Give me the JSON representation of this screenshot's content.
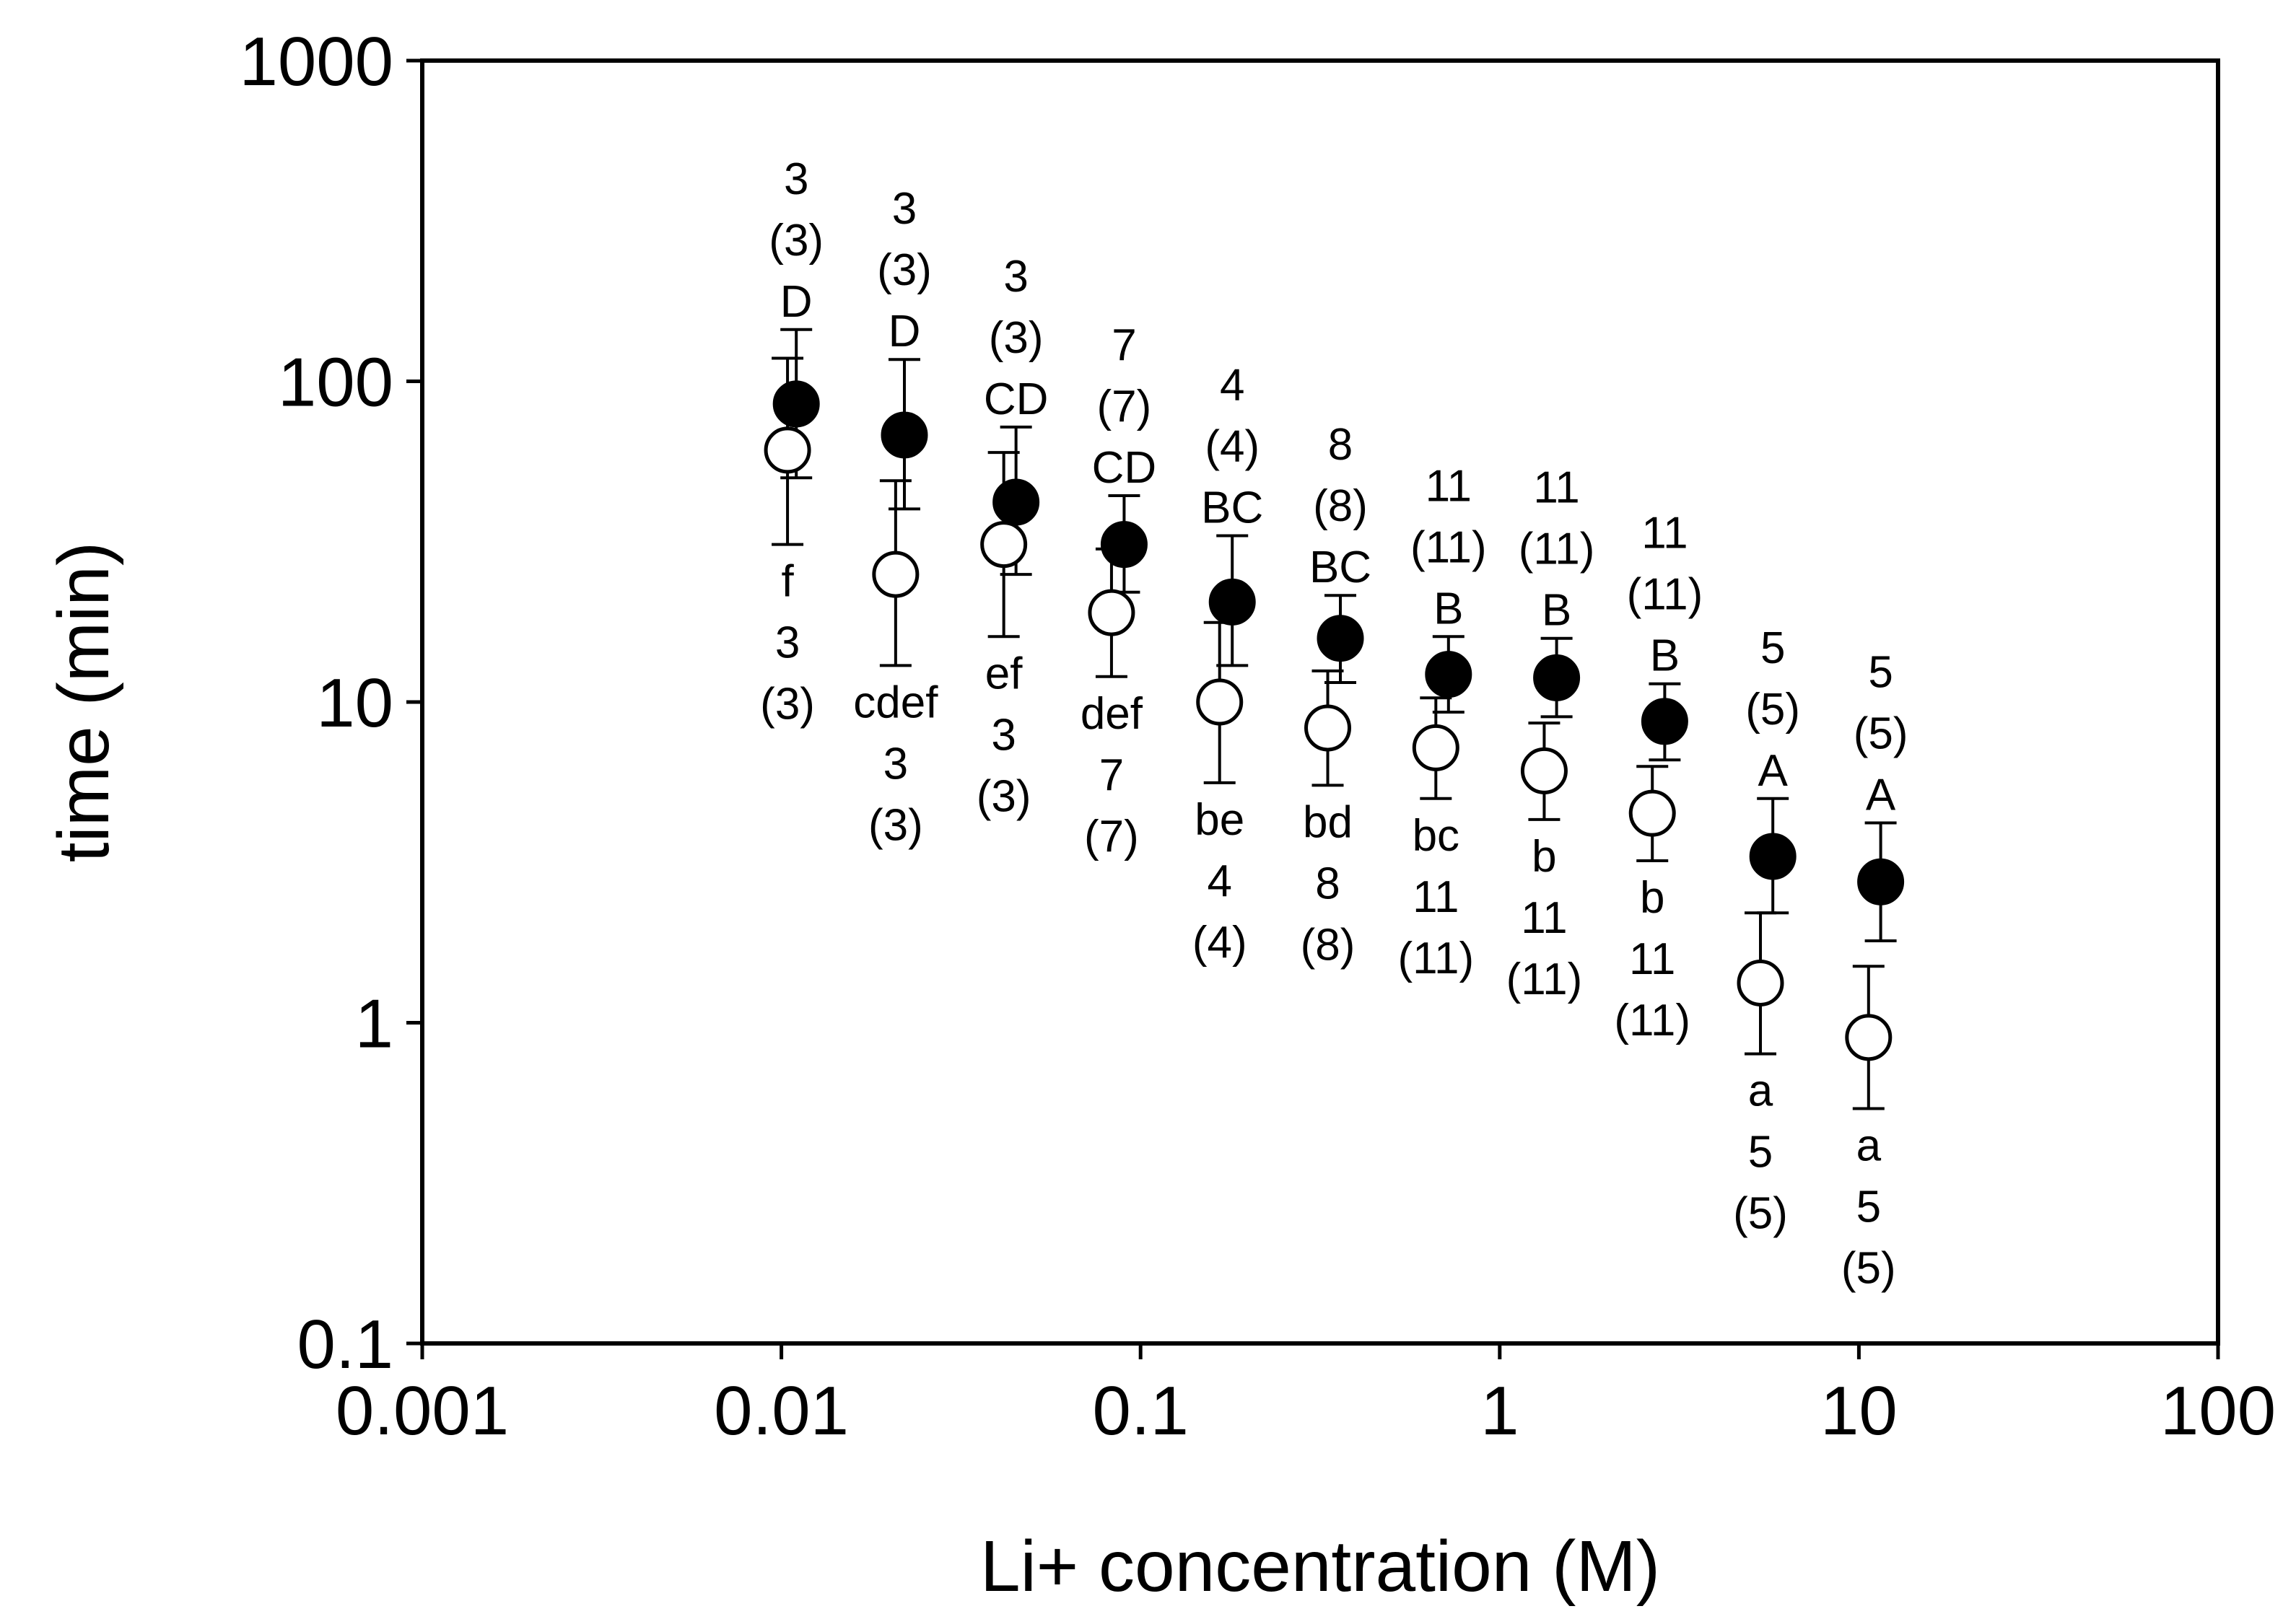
{
  "chart_data": {
    "type": "scatter",
    "x_scale": "log",
    "y_scale": "log",
    "xlabel": "Li+ concentration (M)",
    "ylabel": "time (min)",
    "xlim": [
      0.001,
      100
    ],
    "ylim": [
      0.1,
      1000
    ],
    "x_ticks": [
      {
        "value": 0.001,
        "label": "0.001"
      },
      {
        "value": 0.01,
        "label": "0.01"
      },
      {
        "value": 0.1,
        "label": "0.1"
      },
      {
        "value": 1,
        "label": "1"
      },
      {
        "value": 10,
        "label": "10"
      },
      {
        "value": 100,
        "label": "100"
      }
    ],
    "y_ticks": [
      {
        "value": 0.1,
        "label": "0.1"
      },
      {
        "value": 1,
        "label": "1"
      },
      {
        "value": 10,
        "label": "10"
      },
      {
        "value": 100,
        "label": "100"
      },
      {
        "value": 1000,
        "label": "1000"
      }
    ],
    "series": [
      {
        "name": "filled",
        "marker": "filled-circle",
        "points": [
          {
            "x": 0.011,
            "y": 85,
            "err_lo": 50,
            "err_hi": 145,
            "labels": [
              "3",
              "(3)",
              "D"
            ]
          },
          {
            "x": 0.022,
            "y": 68,
            "err_lo": 40,
            "err_hi": 117,
            "labels": [
              "3",
              "(3)",
              "D"
            ]
          },
          {
            "x": 0.045,
            "y": 42,
            "err_lo": 25,
            "err_hi": 72,
            "labels": [
              "3",
              "(3)",
              "CD"
            ]
          },
          {
            "x": 0.09,
            "y": 31,
            "err_lo": 22,
            "err_hi": 44,
            "labels": [
              "7",
              "(7)",
              "CD"
            ]
          },
          {
            "x": 0.18,
            "y": 20.5,
            "err_lo": 13,
            "err_hi": 33,
            "labels": [
              "4",
              "(4)",
              "BC"
            ]
          },
          {
            "x": 0.36,
            "y": 15.8,
            "err_lo": 11.5,
            "err_hi": 21.5,
            "labels": [
              "8",
              "(8)",
              "BC"
            ]
          },
          {
            "x": 0.72,
            "y": 12.2,
            "err_lo": 9.3,
            "err_hi": 16,
            "labels": [
              "11",
              "(11)",
              "B"
            ]
          },
          {
            "x": 1.44,
            "y": 11.9,
            "err_lo": 9,
            "err_hi": 15.8,
            "labels": [
              "11",
              "(11)",
              "B"
            ]
          },
          {
            "x": 2.88,
            "y": 8.7,
            "err_lo": 6.6,
            "err_hi": 11.4,
            "labels": [
              "11",
              "(11)",
              "B"
            ]
          },
          {
            "x": 5.76,
            "y": 3.3,
            "err_lo": 2.2,
            "err_hi": 5,
            "labels": [
              "5",
              "(5)",
              "A"
            ]
          },
          {
            "x": 11.5,
            "y": 2.75,
            "err_lo": 1.8,
            "err_hi": 4.2,
            "labels": [
              "5",
              "(5)",
              "A"
            ]
          }
        ]
      },
      {
        "name": "open",
        "marker": "open-circle",
        "points": [
          {
            "x": 0.0104,
            "y": 61,
            "err_lo": 31,
            "err_hi": 118,
            "labels": [
              "f",
              "3",
              "(3)"
            ]
          },
          {
            "x": 0.0208,
            "y": 25,
            "err_lo": 13,
            "err_hi": 49,
            "labels": [
              "cdef",
              "3",
              "(3)"
            ]
          },
          {
            "x": 0.0416,
            "y": 31,
            "err_lo": 16,
            "err_hi": 60,
            "labels": [
              "ef",
              "3",
              "(3)"
            ]
          },
          {
            "x": 0.083,
            "y": 19,
            "err_lo": 12,
            "err_hi": 30,
            "labels": [
              "def",
              "7",
              "(7)"
            ]
          },
          {
            "x": 0.166,
            "y": 10,
            "err_lo": 5.6,
            "err_hi": 17.7,
            "labels": [
              "be",
              "4",
              "(4)"
            ]
          },
          {
            "x": 0.332,
            "y": 8.3,
            "err_lo": 5.5,
            "err_hi": 12.5,
            "labels": [
              "bd",
              "8",
              "(8)"
            ]
          },
          {
            "x": 0.664,
            "y": 7.2,
            "err_lo": 5,
            "err_hi": 10.3,
            "labels": [
              "bc",
              "11",
              "(11)"
            ]
          },
          {
            "x": 1.33,
            "y": 6.1,
            "err_lo": 4.3,
            "err_hi": 8.6,
            "labels": [
              "b",
              "11",
              "(11)"
            ]
          },
          {
            "x": 2.66,
            "y": 4.5,
            "err_lo": 3.2,
            "err_hi": 6.3,
            "labels": [
              "b",
              "11",
              "(11)"
            ]
          },
          {
            "x": 5.32,
            "y": 1.33,
            "err_lo": 0.8,
            "err_hi": 2.2,
            "labels": [
              "a",
              "5",
              "(5)"
            ]
          },
          {
            "x": 10.64,
            "y": 0.9,
            "err_lo": 0.54,
            "err_hi": 1.5,
            "labels": [
              "a",
              "5",
              "(5)"
            ]
          }
        ]
      }
    ]
  }
}
